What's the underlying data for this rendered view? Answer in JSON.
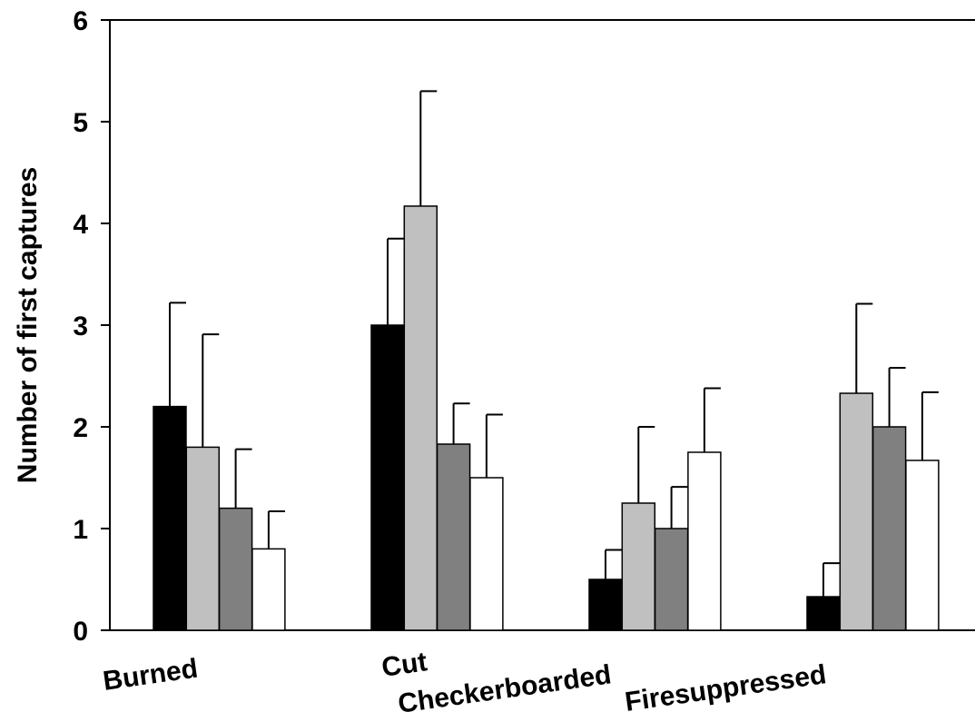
{
  "chart_data": {
    "type": "bar",
    "title": "",
    "xlabel": "",
    "ylabel": "Number of first captures",
    "ylim": [
      0,
      6
    ],
    "yticks": [
      "0",
      "1",
      "2",
      "3",
      "4",
      "5",
      "6"
    ],
    "grid": false,
    "legend": "none",
    "categories": [
      "Burned",
      "Cut",
      "Checkerboarded",
      "Firesuppressed"
    ],
    "series": [
      {
        "color": "#000000",
        "values": [
          2.2,
          3.0,
          0.5,
          0.33
        ],
        "errors": [
          1.02,
          0.85,
          0.29,
          0.33
        ]
      },
      {
        "color": "#c0c0c0",
        "values": [
          1.8,
          4.17,
          1.25,
          2.33
        ],
        "errors": [
          1.11,
          1.13,
          0.75,
          0.88
        ]
      },
      {
        "color": "#808080",
        "values": [
          1.2,
          1.83,
          1.0,
          2.0
        ],
        "errors": [
          0.58,
          0.4,
          0.41,
          0.58
        ]
      },
      {
        "color": "#ffffff",
        "values": [
          0.8,
          1.5,
          1.75,
          1.67
        ],
        "errors": [
          0.37,
          0.62,
          0.63,
          0.67
        ]
      }
    ]
  }
}
